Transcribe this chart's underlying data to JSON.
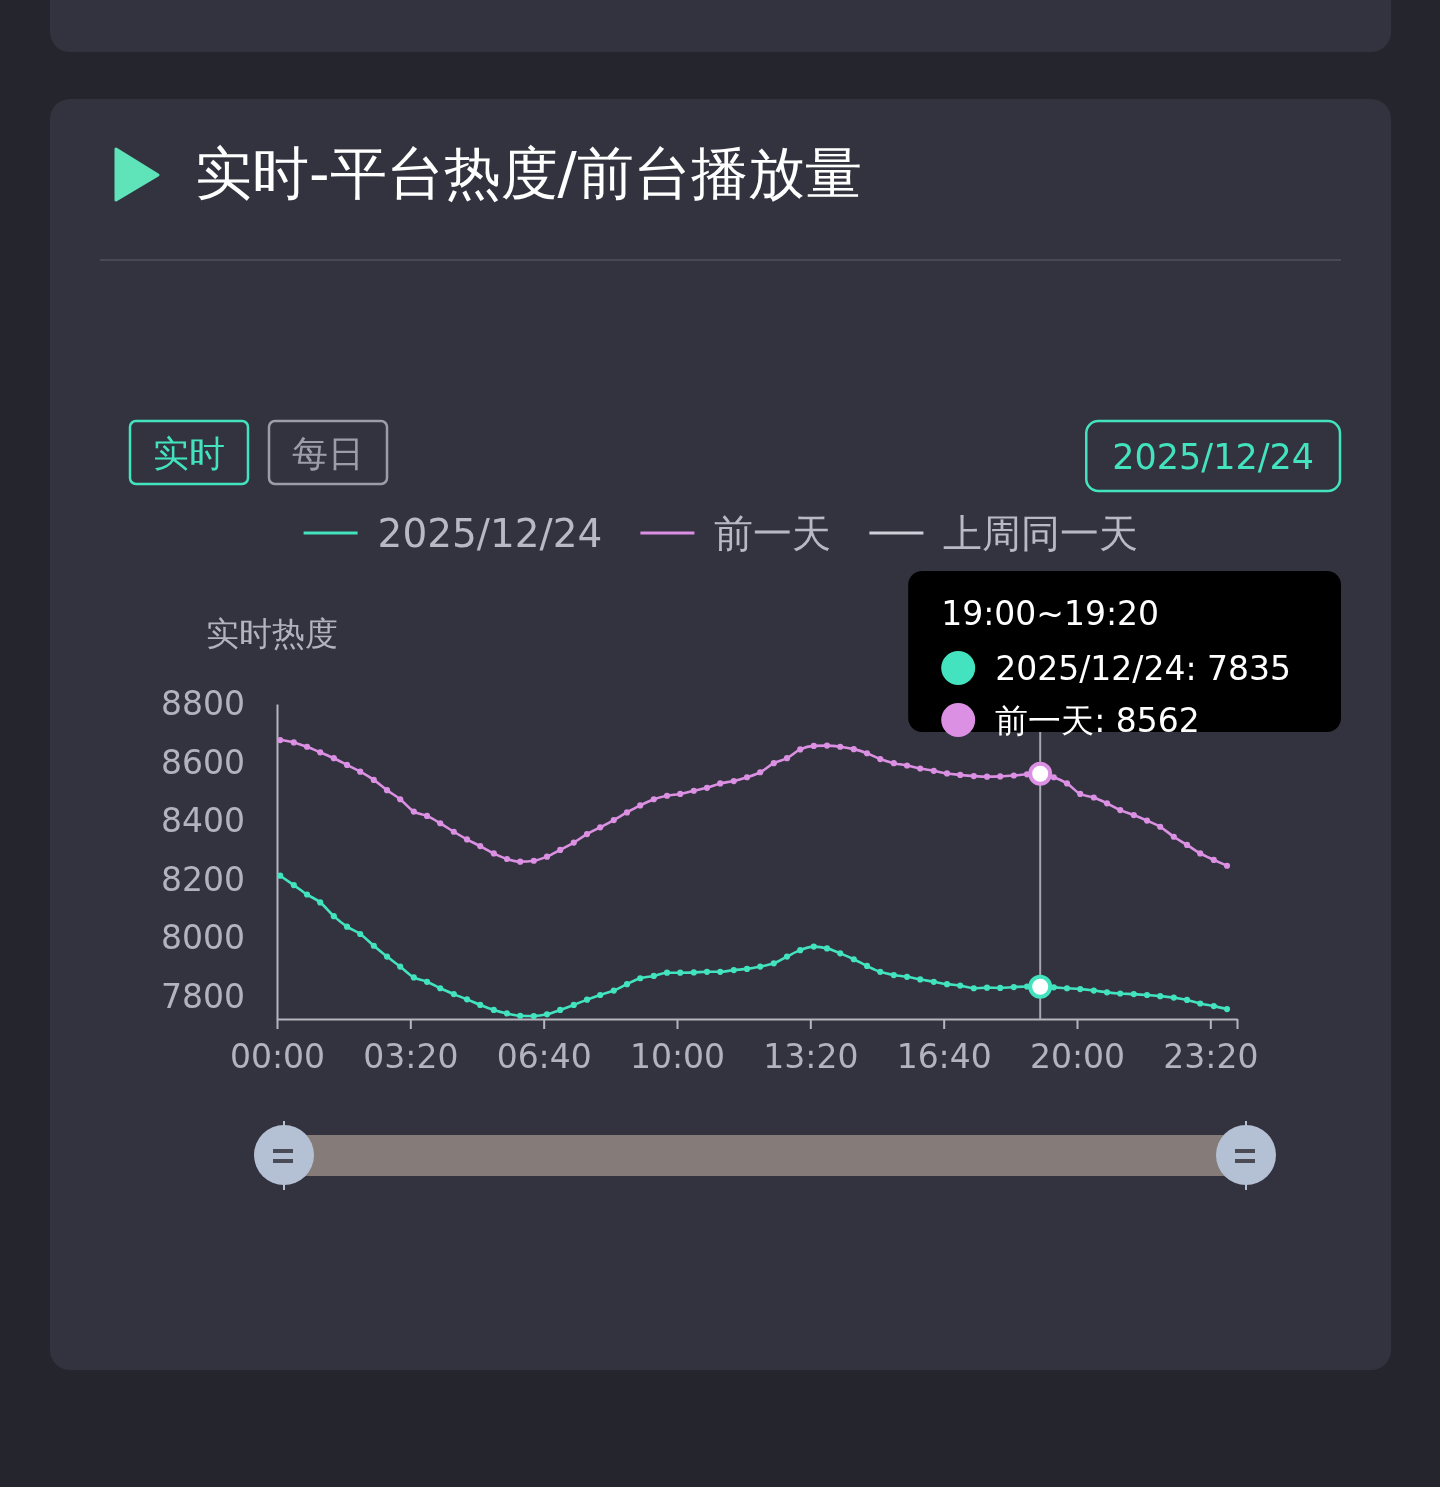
{
  "chart_data": {
    "type": "line",
    "title": "实时-平台热度/前台播放量",
    "ylabel": "实时热度",
    "x": [
      0.08,
      0.42,
      0.75,
      1.08,
      1.42,
      1.75,
      2.08,
      2.42,
      2.75,
      3.08,
      3.42,
      3.75,
      4.08,
      4.42,
      4.75,
      5.08,
      5.42,
      5.75,
      6.08,
      6.42,
      6.75,
      7.08,
      7.42,
      7.75,
      8.08,
      8.42,
      8.75,
      9.08,
      9.42,
      9.75,
      10.08,
      10.42,
      10.75,
      11.08,
      11.42,
      11.75,
      12.08,
      12.42,
      12.75,
      13.08,
      13.42,
      13.75,
      14.08,
      14.42,
      14.75,
      15.08,
      15.42,
      15.75,
      16.08,
      16.42,
      16.75,
      17.08,
      17.42,
      17.75,
      18.08,
      18.42,
      18.75,
      19.08,
      19.42,
      19.75,
      20.08,
      20.42,
      20.75,
      21.08,
      21.42,
      21.75,
      22.08,
      22.42,
      22.75,
      23.08,
      23.42,
      23.75
    ],
    "series": [
      {
        "name": "2025/12/24",
        "color": "#42e3be",
        "values": [
          8214,
          8182,
          8150,
          8123,
          8076,
          8040,
          8015,
          7975,
          7938,
          7904,
          7867,
          7852,
          7830,
          7810,
          7792,
          7773,
          7756,
          7744,
          7736,
          7735,
          7741,
          7756,
          7773,
          7791,
          7807,
          7822,
          7844,
          7864,
          7872,
          7883,
          7883,
          7884,
          7886,
          7886,
          7892,
          7896,
          7904,
          7915,
          7938,
          7960,
          7972,
          7966,
          7949,
          7929,
          7906,
          7886,
          7875,
          7869,
          7860,
          7852,
          7844,
          7839,
          7830,
          7832,
          7831,
          7834,
          7836,
          7835,
          7833,
          7830,
          7827,
          7822,
          7816,
          7812,
          7810,
          7807,
          7803,
          7798,
          7790,
          7778,
          7769,
          7759
        ]
      },
      {
        "name": "前一天",
        "color": "#db90e3",
        "values": [
          8677,
          8669,
          8654,
          8635,
          8615,
          8592,
          8569,
          8541,
          8506,
          8475,
          8433,
          8418,
          8393,
          8364,
          8338,
          8315,
          8290,
          8271,
          8262,
          8265,
          8279,
          8302,
          8327,
          8356,
          8379,
          8404,
          8430,
          8454,
          8475,
          8487,
          8493,
          8504,
          8514,
          8529,
          8537,
          8550,
          8567,
          8598,
          8615,
          8645,
          8657,
          8658,
          8654,
          8646,
          8632,
          8612,
          8598,
          8590,
          8580,
          8572,
          8563,
          8558,
          8554,
          8552,
          8553,
          8556,
          8560,
          8562,
          8550,
          8529,
          8493,
          8481,
          8461,
          8438,
          8421,
          8402,
          8381,
          8347,
          8319,
          8290,
          8268,
          8248
        ]
      },
      {
        "name": "上周同一天",
        "color": "#d0d0d8",
        "values": [
          null,
          null,
          null,
          null,
          null,
          null,
          null,
          null,
          null,
          null,
          null,
          null,
          null,
          null,
          null,
          null,
          null,
          null,
          null,
          null,
          null,
          null,
          null,
          null,
          null,
          null,
          null,
          null,
          null,
          null,
          null,
          null,
          null,
          null,
          null,
          null,
          null,
          null,
          null,
          null,
          null,
          null,
          null,
          null,
          null,
          null,
          null,
          null,
          null,
          null,
          null,
          null,
          null,
          null,
          null,
          null,
          null,
          null,
          null,
          null,
          null,
          null,
          null,
          null,
          null,
          null,
          null,
          null,
          null,
          null,
          null,
          null
        ]
      }
    ],
    "xlim": [
      0,
      24
    ],
    "xticks": [
      {
        "value": 0,
        "label": "00:00"
      },
      {
        "value": 3.333,
        "label": "03:20"
      },
      {
        "value": 6.667,
        "label": "06:40"
      },
      {
        "value": 10,
        "label": "10:00"
      },
      {
        "value": 13.333,
        "label": "13:20"
      },
      {
        "value": 16.667,
        "label": "16:40"
      },
      {
        "value": 20,
        "label": "20:00"
      },
      {
        "value": 23.333,
        "label": "23:20"
      },
      {
        "value": 24,
        "label": null
      }
    ],
    "ylim": [
      7725,
      8800
    ],
    "yticks": [
      7800,
      8000,
      8200,
      8400,
      8600,
      8800
    ],
    "legend": "top",
    "marker": "circle",
    "ref_lines": [
      {
        "axis": "x",
        "value": 19.08,
        "color": "#a6a6ae"
      }
    ],
    "annotations": [
      "实时",
      "每日",
      "2025/12/24",
      "19:00~19:20",
      "2025/12/24: 7835",
      "前一天: 8562"
    ]
  }
}
